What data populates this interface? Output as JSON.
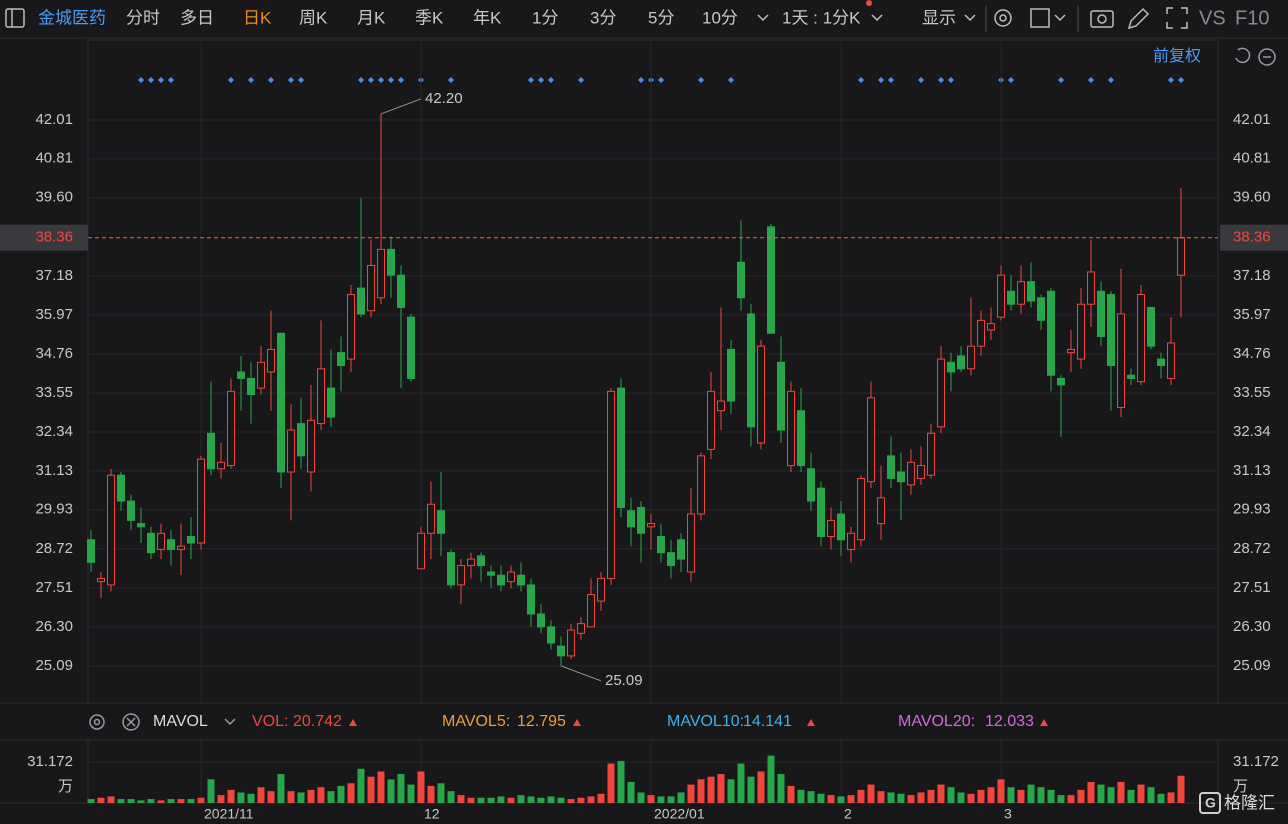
{
  "toolbar": {
    "stock_name": "金城医药",
    "tabs": [
      "分时",
      "多日",
      "日K",
      "周K",
      "月K",
      "季K",
      "年K",
      "1分",
      "3分",
      "5分",
      "10分"
    ],
    "selected_tab": "日K",
    "period": "1天 : 1分K",
    "display": "显示",
    "vs": "VS",
    "f10": "F10"
  },
  "adjust": "前复权",
  "chart_data": {
    "type": "candlestick",
    "categories": [
      null,
      null,
      null,
      null,
      null,
      null,
      null,
      null,
      null,
      null,
      null,
      "2021/11",
      null,
      null,
      null,
      null,
      null,
      null,
      null,
      null,
      null,
      null,
      null,
      null,
      null,
      null,
      null,
      null,
      null,
      null,
      null,
      null,
      null,
      "12",
      null,
      null,
      null,
      null,
      null,
      null,
      null,
      null,
      null,
      null,
      null,
      null,
      null,
      null,
      null,
      null,
      null,
      null,
      null,
      null,
      null,
      null,
      "2022/01",
      null,
      null,
      null,
      null,
      null,
      null,
      null,
      null,
      null,
      null,
      null,
      null,
      null,
      null,
      null,
      null,
      null,
      null,
      "2",
      null,
      null,
      null,
      null,
      null,
      null,
      null,
      null,
      null,
      null,
      null,
      null,
      null,
      null,
      null,
      "3",
      null,
      null,
      null,
      null,
      null,
      null,
      null,
      null,
      null,
      null,
      null,
      null,
      null,
      null,
      null,
      null,
      null,
      null
    ],
    "open": [
      29.0,
      27.7,
      27.6,
      31.0,
      30.2,
      29.5,
      29.2,
      28.7,
      29.0,
      28.7,
      29.1,
      28.9,
      32.3,
      31.2,
      31.3,
      34.2,
      34.0,
      33.7,
      34.2,
      35.4,
      31.1,
      32.6,
      31.1,
      32.6,
      33.7,
      34.8,
      34.6,
      36.8,
      36.1,
      36.5,
      38.0,
      37.2,
      35.9,
      28.1,
      29.2,
      29.9,
      28.6,
      27.6,
      28.2,
      28.5,
      28.0,
      27.9,
      27.7,
      27.9,
      27.6,
      26.7,
      26.3,
      25.7,
      25.4,
      26.1,
      26.3,
      27.1,
      27.8,
      33.7,
      29.9,
      30.0,
      29.4,
      29.1,
      28.6,
      29.0,
      28.0,
      29.8,
      31.8,
      33.0,
      34.9,
      37.6,
      36.0,
      32.0,
      38.7,
      34.5,
      31.3,
      33.0,
      31.2,
      30.6,
      29.1,
      29.8,
      28.7,
      29.0,
      30.8,
      29.5,
      31.6,
      31.1,
      30.7,
      30.9,
      31.0,
      32.5,
      34.5,
      34.7,
      34.3,
      35.0,
      35.5,
      35.9,
      36.7,
      36.3,
      37.0,
      36.5,
      36.7,
      34.0,
      34.8,
      34.6,
      36.3,
      36.7,
      36.6,
      33.1,
      34.1,
      33.9,
      36.2,
      34.6,
      34.0,
      37.2
    ],
    "high": [
      29.3,
      28.0,
      31.2,
      31.1,
      30.4,
      30.0,
      29.4,
      29.5,
      29.3,
      29.5,
      29.7,
      31.6,
      33.9,
      32.0,
      34.0,
      34.7,
      34.5,
      35.0,
      36.1,
      35.4,
      33.2,
      33.4,
      33.8,
      35.8,
      34.9,
      35.3,
      36.9,
      39.6,
      38.3,
      42.2,
      38.4,
      37.5,
      36.0,
      29.4,
      30.8,
      31.1,
      28.7,
      28.4,
      28.6,
      28.6,
      28.2,
      28.2,
      28.2,
      28.3,
      27.8,
      27.0,
      26.5,
      26.0,
      26.4,
      26.6,
      27.8,
      28.0,
      33.7,
      34.0,
      30.3,
      30.2,
      29.8,
      29.5,
      29.0,
      29.2,
      30.6,
      31.7,
      34.2,
      36.2,
      35.2,
      38.9,
      36.3,
      35.2,
      38.8,
      35.3,
      33.9,
      33.7,
      31.7,
      30.8,
      30.0,
      30.2,
      29.4,
      31.0,
      33.9,
      31.3,
      32.2,
      31.7,
      31.8,
      31.9,
      32.6,
      35.0,
      34.8,
      35.0,
      36.5,
      36.1,
      36.2,
      37.5,
      37.2,
      37.5,
      37.6,
      36.6,
      36.8,
      34.1,
      35.5,
      36.8,
      38.3,
      37.0,
      36.7,
      37.4,
      34.3,
      36.9,
      36.2,
      34.8,
      35.9,
      39.9
    ],
    "low": [
      28.0,
      27.2,
      27.4,
      29.9,
      29.3,
      28.9,
      28.4,
      28.4,
      28.2,
      27.9,
      28.4,
      28.7,
      31.0,
      30.9,
      31.2,
      33.0,
      32.6,
      33.5,
      33.0,
      30.6,
      29.6,
      31.2,
      30.5,
      32.4,
      32.5,
      33.6,
      34.2,
      35.9,
      35.9,
      36.3,
      36.5,
      33.7,
      33.9,
      28.1,
      28.4,
      28.5,
      27.5,
      27.0,
      27.8,
      27.7,
      27.5,
      27.4,
      27.5,
      27.4,
      26.3,
      26.1,
      25.6,
      25.09,
      25.3,
      25.9,
      26.3,
      26.8,
      27.6,
      29.7,
      28.8,
      28.3,
      28.7,
      28.3,
      27.8,
      28.0,
      27.7,
      29.6,
      31.5,
      32.4,
      32.9,
      36.1,
      31.9,
      31.8,
      35.4,
      32.0,
      31.1,
      31.1,
      29.9,
      28.8,
      28.7,
      28.5,
      28.3,
      28.8,
      30.6,
      29.0,
      30.6,
      29.6,
      30.4,
      30.7,
      30.9,
      32.3,
      33.6,
      34.2,
      34.1,
      34.7,
      35.2,
      35.8,
      36.1,
      36.0,
      36.2,
      35.5,
      33.6,
      32.2,
      34.2,
      34.3,
      35.6,
      35.0,
      33.0,
      32.8,
      33.8,
      33.8,
      34.9,
      34.0,
      33.8,
      35.9
    ],
    "close": [
      28.3,
      27.8,
      31.0,
      30.2,
      29.6,
      29.4,
      28.6,
      29.2,
      28.7,
      28.8,
      28.9,
      31.5,
      31.2,
      31.4,
      33.6,
      34.0,
      33.5,
      34.5,
      34.9,
      31.1,
      32.4,
      31.6,
      32.7,
      34.3,
      32.8,
      34.4,
      36.6,
      36.0,
      37.5,
      38.0,
      37.2,
      36.2,
      34.0,
      29.2,
      30.1,
      29.2,
      27.6,
      28.2,
      28.4,
      28.2,
      27.9,
      27.6,
      28.0,
      27.6,
      26.7,
      26.3,
      25.8,
      25.4,
      26.2,
      26.4,
      27.3,
      27.8,
      33.6,
      30.0,
      29.4,
      29.2,
      29.5,
      28.6,
      28.2,
      28.4,
      29.8,
      31.6,
      33.6,
      33.3,
      33.3,
      36.5,
      32.5,
      35.0,
      35.4,
      32.4,
      33.6,
      31.3,
      30.2,
      29.1,
      29.6,
      29.0,
      29.2,
      30.9,
      33.4,
      30.3,
      30.9,
      30.8,
      31.4,
      31.3,
      32.3,
      34.6,
      34.2,
      34.3,
      35.0,
      35.8,
      35.7,
      37.2,
      36.3,
      37.0,
      36.4,
      35.8,
      34.1,
      33.8,
      34.9,
      36.3,
      37.3,
      35.3,
      34.4,
      36.0,
      34.0,
      36.6,
      35.0,
      34.4,
      35.1,
      38.36
    ],
    "ylim": [
      23.94,
      44.49
    ],
    "yticks": [
      25.09,
      {
        "value": 26.3,
        "label": "26.30"
      },
      27.51,
      28.72,
      29.93,
      31.13,
      32.34,
      33.55,
      34.76,
      35.97,
      37.18,
      {
        "value": 39.6,
        "label": "39.60"
      },
      40.81,
      42.01
    ],
    "last_price": {
      "value": 38.36,
      "label": "38.36"
    },
    "annotations": [
      {
        "value": 42.2,
        "label": "42.20"
      },
      {
        "value": 25.09,
        "label": "25.09"
      }
    ],
    "up_color": "#f0463c",
    "down_color": "#27a64a",
    "grid": true
  },
  "volume": {
    "type": "bar",
    "indicator": "MAVOL",
    "legend": [
      {
        "name": "VOL:",
        "value": 20.742,
        "color": "#f0463c"
      },
      {
        "name": "MAVOL5:",
        "value": 12.795,
        "color": "#f39a3c"
      },
      {
        "name": "MAVOL10:",
        "value": 14.141,
        "color": "#3fb0f0"
      },
      {
        "name": "MAVOL20:",
        "value": 12.033,
        "color": "#d866e6"
      }
    ],
    "values": [
      3,
      4,
      5,
      3,
      3,
      2,
      3,
      2,
      3,
      3,
      3,
      4,
      18,
      6,
      10,
      8,
      7,
      12,
      9,
      22,
      9,
      8,
      10,
      12,
      9,
      13,
      15,
      26,
      20,
      24,
      18,
      22,
      14,
      24,
      13,
      15,
      9,
      6,
      4,
      4,
      4,
      5,
      4,
      6,
      5,
      4,
      5,
      4,
      3,
      4,
      5,
      7,
      30,
      32,
      16,
      8,
      6,
      5,
      5,
      8,
      14,
      18,
      20,
      22,
      18,
      30,
      20,
      24,
      36,
      22,
      13,
      10,
      9,
      7,
      6,
      5,
      6,
      10,
      14,
      9,
      8,
      7,
      6,
      8,
      10,
      14,
      12,
      8,
      7,
      10,
      12,
      18,
      12,
      10,
      14,
      12,
      10,
      6,
      6,
      10,
      16,
      14,
      12,
      16,
      10,
      14,
      12,
      7,
      8,
      20.742
    ],
    "ylim": [
      0,
      44.1
    ],
    "yticks": [
      31.172
    ],
    "unit": "万"
  },
  "watermark": "格隆汇"
}
